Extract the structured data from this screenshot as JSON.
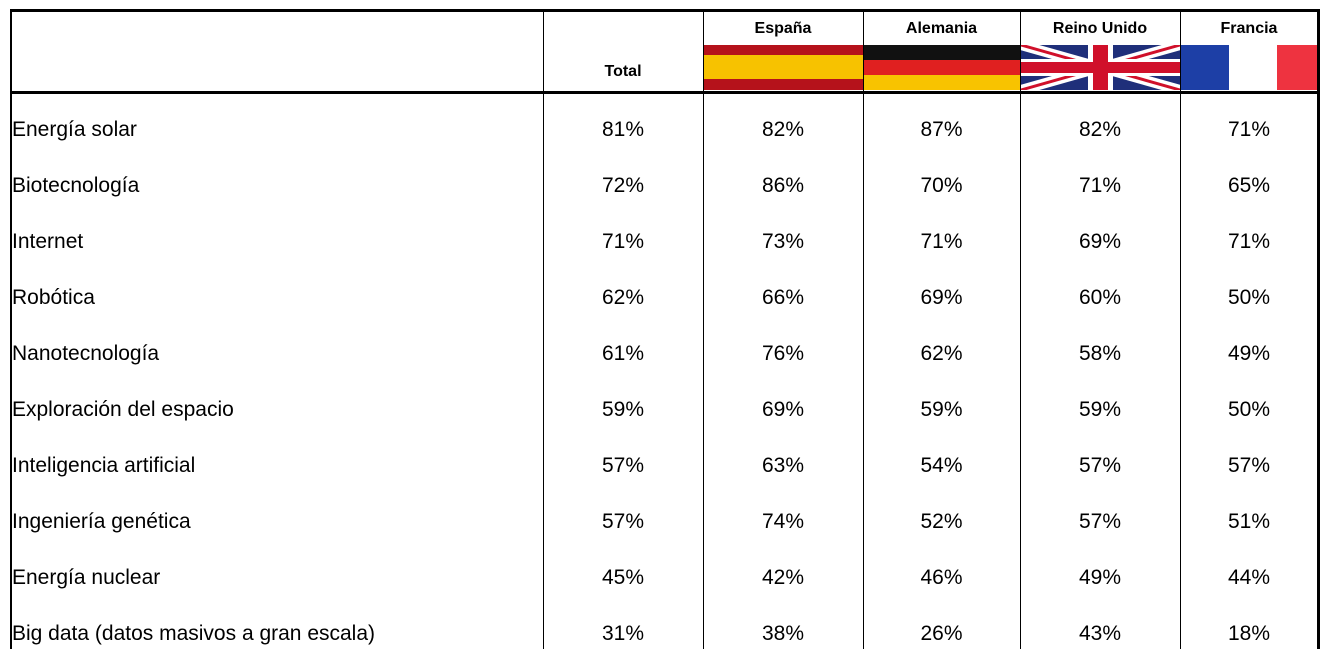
{
  "table": {
    "corner": "Total",
    "countries": [
      "España",
      "Alemania",
      "Reino Unido",
      "Francia"
    ],
    "rows": [
      [
        "Energía solar",
        "81%",
        "82%",
        "87%",
        "82%",
        "71%"
      ],
      [
        "Biotecnología",
        "72%",
        "86%",
        "70%",
        "71%",
        "65%"
      ],
      [
        "Internet",
        "71%",
        "73%",
        "71%",
        "69%",
        "71%"
      ],
      [
        "Robótica",
        "62%",
        "66%",
        "69%",
        "60%",
        "50%"
      ],
      [
        "Nanotecnología",
        "61%",
        "76%",
        "62%",
        "58%",
        "49%"
      ],
      [
        "Exploración del espacio",
        "59%",
        "69%",
        "59%",
        "59%",
        "50%"
      ],
      [
        "Inteligencia artificial",
        "57%",
        "63%",
        "54%",
        "57%",
        "57%"
      ],
      [
        "Ingeniería genética",
        "57%",
        "74%",
        "52%",
        "57%",
        "51%"
      ],
      [
        "Energía nuclear",
        "45%",
        "42%",
        "46%",
        "49%",
        "44%"
      ],
      [
        "Big data (datos masivos a gran escala)",
        "31%",
        "38%",
        "26%",
        "43%",
        "18%"
      ]
    ]
  }
}
